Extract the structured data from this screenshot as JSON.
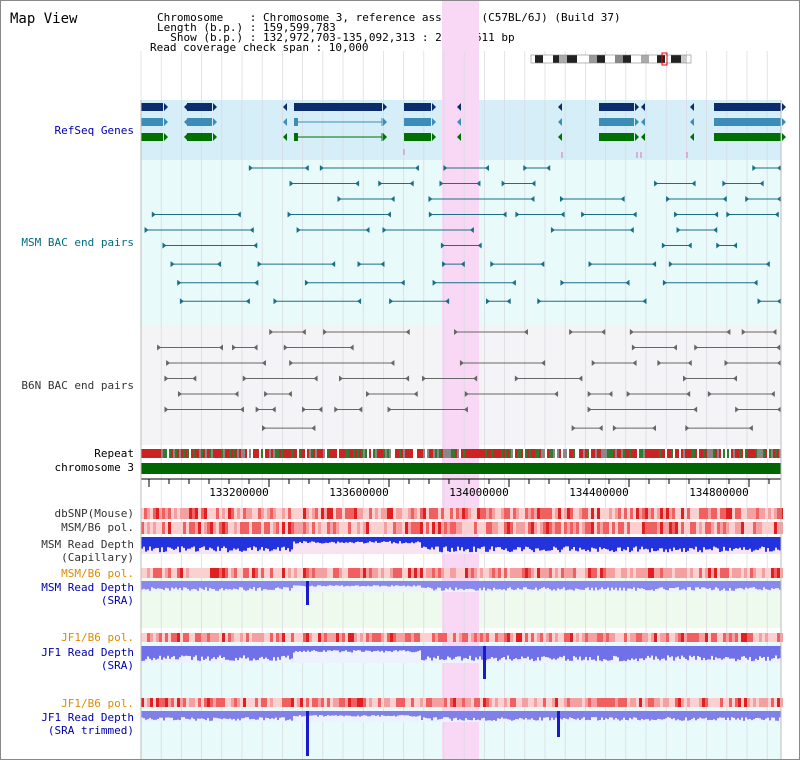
{
  "header": {
    "title": "Map View",
    "chromosome_line": "Chromosome    : Chromosome 3, reference assembly (C57BL/6J) (Build 37)",
    "length_line": "Length (b.p.) : 159,599,783",
    "show_line": "  Show (b.p.) : 132,972,703-135,092,313 : 2,119,611 bp",
    "coverage_line": "Read coverage check span : 10,000"
  },
  "tracks": {
    "refseq": "RefSeq Genes",
    "msm_bac": "MSM BAC end pairs",
    "b6n_bac": "B6N BAC end pairs",
    "repeat": "Repeat",
    "chromosome": "chromosome 3",
    "dbsnp": "dbSNP(Mouse)",
    "msm_b6_pol_1": "MSM/B6 pol.",
    "msm_rd_cap_1": "MSM Read Depth",
    "msm_rd_cap_2": "(Capillary)",
    "msm_b6_pol_2": "MSM/B6 pol.",
    "msm_rd_sra_1": "MSM Read Depth",
    "msm_rd_sra_2": "(SRA)",
    "jf1_b6_pol_1": "JF1/B6 pol.",
    "jf1_rd_sra_1": "JF1 Read Depth",
    "jf1_rd_sra_2": "(SRA)",
    "jf1_b6_pol_2": "JF1/B6 pol.",
    "jf1_rd_trim_1": "JF1 Read Depth",
    "jf1_rd_trim_2": "(SRA trimmed)"
  },
  "axis": {
    "ticks": [
      "133200000",
      "133600000",
      "134000000",
      "134400000",
      "134800000"
    ]
  },
  "colors": {
    "blue_label": "#0000aa",
    "teal_label": "#006b80",
    "gray_label": "#333333",
    "orange_label": "#e08a00",
    "highlight": "#f8d8f4",
    "refseq_bg": "#d6eef8",
    "msm_bg": "#e8fafa",
    "b6n_bg": "#f4f4f6",
    "gene_dark": "#0b2d6b",
    "gene_mid": "#3b8db8",
    "gene_green": "#007000",
    "chrom_green": "#006600"
  }
}
